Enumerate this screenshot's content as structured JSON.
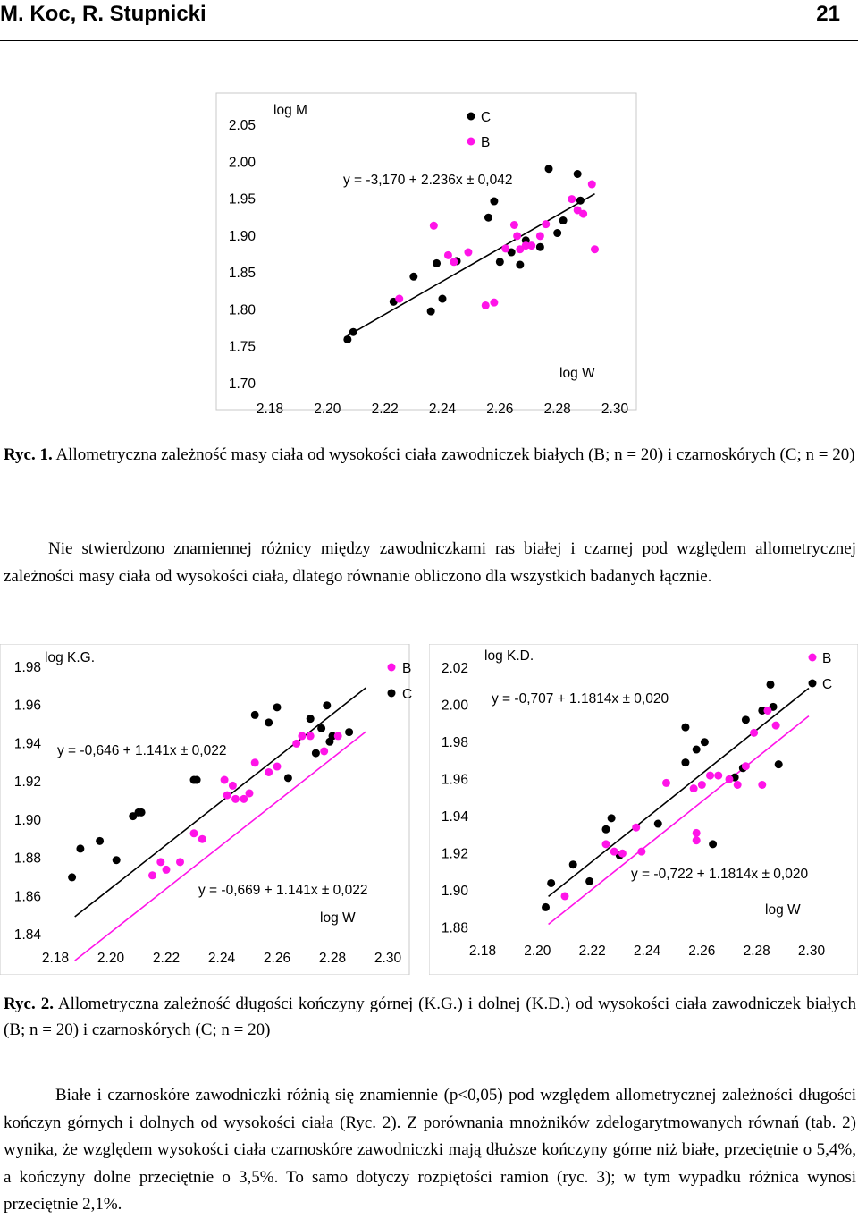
{
  "header": {
    "authors": "M. Koc, R. Stupnicki",
    "page_number": "21"
  },
  "fig1": {
    "caption_label": "Ryc. 1.",
    "caption_text": " Allometryczna zależność masy ciała od wysokości ciała zawodniczek białych (B; n = 20) i czarnoskórych (C; n = 20)"
  },
  "para1": "Nie stwierdzono znamiennej różnicy między zawodniczkami ras białej i czarnej pod względem allometrycznej zależności masy ciała od wysokości ciała, dlatego równanie obliczono dla wszystkich badanych łącznie.",
  "fig2": {
    "caption_label": "Ryc. 2.",
    "caption_text": " Allometryczna zależność długości kończyny górnej (K.G.) i dolnej (K.D.) od wysokości ciała zawodniczek białych (B; n = 20) i czarnoskórych (C; n = 20)"
  },
  "para2": "Białe i czarnoskóre zawodniczki różnią się znamiennie (p<0,05) pod względem allometrycznej zależności długości kończyn górnych i dolnych od wysokości ciała (Ryc. 2). Z porównania mnożników zdelogarytmowanych równań (tab. 2) wynika, że względem wysokości ciała czarnoskóre zawodniczki mają dłuższe kończyny górne niż białe, przeciętnie o 5,4%, a kończyny dolne przeciętnie o 3,5%. To samo dotyczy rozpiętości ramion (ryc. 3); w tym wypadku różnica wynosi przeciętnie 2,1%.",
  "colors": {
    "C": "#000000",
    "B": "#ff14e8"
  },
  "chart_data": [
    {
      "type": "scatter",
      "title": "",
      "xlabel": "log W",
      "ylabel": "log M",
      "xlim": [
        2.18,
        2.3
      ],
      "ylim": [
        1.7,
        2.05
      ],
      "xticks": [
        "2.18",
        "2.20",
        "2.22",
        "2.24",
        "2.26",
        "2.28",
        "2.30"
      ],
      "yticks": [
        "2.05",
        "2.00",
        "1.95",
        "1.90",
        "1.85",
        "1.80",
        "1.75",
        "1.70"
      ],
      "legend": [
        "C",
        "B"
      ],
      "legend_position": "top-center",
      "equations": [
        "y = -3,170 + 2.236x ± 0,042"
      ],
      "fit_lines": [
        {
          "series": "all",
          "color": "#000000",
          "intercept": -3.17,
          "slope": 2.236,
          "x": [
            2.207,
            2.293
          ]
        }
      ],
      "series": [
        {
          "name": "C",
          "color": "#000000",
          "points": [
            [
              2.207,
              1.76
            ],
            [
              2.209,
              1.77
            ],
            [
              2.223,
              1.811
            ],
            [
              2.23,
              1.845
            ],
            [
              2.236,
              1.798
            ],
            [
              2.238,
              1.863
            ],
            [
              2.24,
              1.815
            ],
            [
              2.245,
              1.866
            ],
            [
              2.256,
              1.925
            ],
            [
              2.258,
              1.947
            ],
            [
              2.26,
              1.865
            ],
            [
              2.264,
              1.878
            ],
            [
              2.267,
              1.861
            ],
            [
              2.269,
              1.894
            ],
            [
              2.274,
              1.885
            ],
            [
              2.277,
              1.991
            ],
            [
              2.28,
              1.904
            ],
            [
              2.282,
              1.921
            ],
            [
              2.287,
              1.984
            ],
            [
              2.288,
              1.948
            ]
          ]
        },
        {
          "name": "B",
          "color": "#ff14e8",
          "points": [
            [
              2.225,
              1.815
            ],
            [
              2.237,
              1.914
            ],
            [
              2.242,
              1.874
            ],
            [
              2.244,
              1.865
            ],
            [
              2.249,
              1.878
            ],
            [
              2.255,
              1.806
            ],
            [
              2.258,
              1.81
            ],
            [
              2.262,
              1.883
            ],
            [
              2.265,
              1.915
            ],
            [
              2.266,
              1.9
            ],
            [
              2.267,
              1.882
            ],
            [
              2.269,
              1.887
            ],
            [
              2.271,
              1.887
            ],
            [
              2.274,
              1.9
            ],
            [
              2.276,
              1.916
            ],
            [
              2.285,
              1.95
            ],
            [
              2.287,
              1.935
            ],
            [
              2.289,
              1.93
            ],
            [
              2.292,
              1.97
            ],
            [
              2.293,
              1.882
            ]
          ]
        }
      ]
    },
    {
      "type": "scatter",
      "title": "",
      "xlabel": "log W",
      "ylabel": "log K.G.",
      "xlim": [
        2.18,
        2.3
      ],
      "ylim": [
        1.84,
        1.98
      ],
      "xticks": [
        "2.18",
        "2.20",
        "2.22",
        "2.24",
        "2.26",
        "2.28",
        "2.30"
      ],
      "yticks": [
        "1.98",
        "1.96",
        "1.94",
        "1.92",
        "1.90",
        "1.88",
        "1.86",
        "1.84"
      ],
      "legend": [
        "B",
        "C"
      ],
      "legend_position": "top-right",
      "equations": [
        "y = -0,646 + 1.141x ± 0,022",
        "y = -0,669 + 1.141x ± 0,022"
      ],
      "fit_lines": [
        {
          "series": "C",
          "color": "#000000",
          "intercept": -0.646,
          "slope": 1.141,
          "x": [
            2.187,
            2.292
          ]
        },
        {
          "series": "B",
          "color": "#ff14e8",
          "intercept": -0.669,
          "slope": 1.141,
          "x": [
            2.187,
            2.292
          ]
        }
      ],
      "series": [
        {
          "name": "C",
          "color": "#000000",
          "points": [
            [
              2.186,
              1.87
            ],
            [
              2.189,
              1.885
            ],
            [
              2.196,
              1.889
            ],
            [
              2.202,
              1.879
            ],
            [
              2.208,
              1.902
            ],
            [
              2.21,
              1.904
            ],
            [
              2.211,
              1.904
            ],
            [
              2.23,
              1.921
            ],
            [
              2.231,
              1.921
            ],
            [
              2.252,
              1.955
            ],
            [
              2.257,
              1.951
            ],
            [
              2.26,
              1.959
            ],
            [
              2.264,
              1.922
            ],
            [
              2.272,
              1.953
            ],
            [
              2.274,
              1.935
            ],
            [
              2.276,
              1.948
            ],
            [
              2.278,
              1.96
            ],
            [
              2.279,
              1.941
            ],
            [
              2.28,
              1.944
            ],
            [
              2.286,
              1.946
            ]
          ]
        },
        {
          "name": "B",
          "color": "#ff14e8",
          "points": [
            [
              2.215,
              1.871
            ],
            [
              2.218,
              1.878
            ],
            [
              2.22,
              1.874
            ],
            [
              2.225,
              1.878
            ],
            [
              2.23,
              1.893
            ],
            [
              2.233,
              1.89
            ],
            [
              2.241,
              1.921
            ],
            [
              2.242,
              1.913
            ],
            [
              2.244,
              1.918
            ],
            [
              2.245,
              1.911
            ],
            [
              2.248,
              1.911
            ],
            [
              2.25,
              1.914
            ],
            [
              2.252,
              1.93
            ],
            [
              2.257,
              1.925
            ],
            [
              2.26,
              1.928
            ],
            [
              2.267,
              1.94
            ],
            [
              2.269,
              1.944
            ],
            [
              2.272,
              1.944
            ],
            [
              2.277,
              1.936
            ],
            [
              2.282,
              1.944
            ]
          ]
        }
      ]
    },
    {
      "type": "scatter",
      "title": "",
      "xlabel": "log W",
      "ylabel": "log K.D.",
      "xlim": [
        2.18,
        2.3
      ],
      "ylim": [
        1.87,
        2.03
      ],
      "xticks": [
        "2.18",
        "2.20",
        "2.22",
        "2.24",
        "2.26",
        "2.28",
        "2.30"
      ],
      "yticks": [
        "2.02",
        "2.00",
        "1.98",
        "1.96",
        "1.94",
        "1.92",
        "1.90",
        "1.88"
      ],
      "legend": [
        "B",
        "C"
      ],
      "legend_position": "top-right",
      "equations": [
        "y = -0,707 + 1.1814x ± 0,020",
        "y = -0,722 + 1.1814x ± 0,020"
      ],
      "fit_lines": [
        {
          "series": "C",
          "color": "#000000",
          "intercept": -0.707,
          "slope": 1.1814,
          "x": [
            2.204,
            2.299
          ]
        },
        {
          "series": "B",
          "color": "#ff14e8",
          "intercept": -0.722,
          "slope": 1.1814,
          "x": [
            2.204,
            2.299
          ]
        }
      ],
      "series": [
        {
          "name": "C",
          "color": "#000000",
          "points": [
            [
              2.203,
              1.891
            ],
            [
              2.205,
              1.904
            ],
            [
              2.213,
              1.914
            ],
            [
              2.219,
              1.905
            ],
            [
              2.225,
              1.933
            ],
            [
              2.227,
              1.939
            ],
            [
              2.23,
              1.919
            ],
            [
              2.244,
              1.936
            ],
            [
              2.254,
              1.969
            ],
            [
              2.254,
              1.988
            ],
            [
              2.258,
              1.976
            ],
            [
              2.261,
              1.98
            ],
            [
              2.264,
              1.925
            ],
            [
              2.272,
              1.961
            ],
            [
              2.275,
              1.966
            ],
            [
              2.276,
              1.992
            ],
            [
              2.282,
              1.997
            ],
            [
              2.285,
              2.011
            ],
            [
              2.286,
              1.999
            ],
            [
              2.288,
              1.968
            ]
          ]
        },
        {
          "name": "B",
          "color": "#ff14e8",
          "points": [
            [
              2.21,
              1.897
            ],
            [
              2.225,
              1.925
            ],
            [
              2.228,
              1.921
            ],
            [
              2.231,
              1.92
            ],
            [
              2.236,
              1.934
            ],
            [
              2.238,
              1.921
            ],
            [
              2.247,
              1.958
            ],
            [
              2.257,
              1.955
            ],
            [
              2.258,
              1.931
            ],
            [
              2.258,
              1.927
            ],
            [
              2.26,
              1.957
            ],
            [
              2.263,
              1.962
            ],
            [
              2.266,
              1.962
            ],
            [
              2.27,
              1.96
            ],
            [
              2.273,
              1.957
            ],
            [
              2.276,
              1.967
            ],
            [
              2.279,
              1.985
            ],
            [
              2.282,
              1.957
            ],
            [
              2.284,
              1.997
            ],
            [
              2.287,
              1.989
            ]
          ]
        }
      ]
    }
  ]
}
